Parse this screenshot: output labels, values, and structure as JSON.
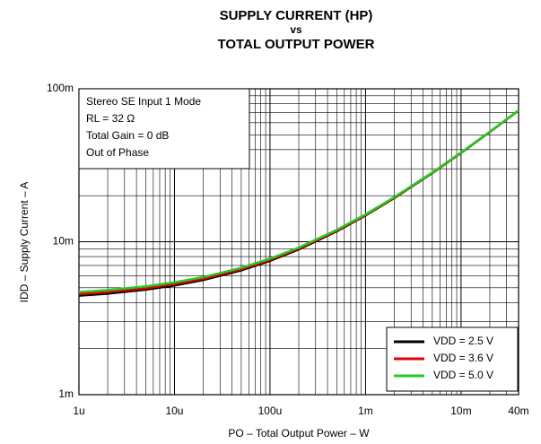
{
  "chart_data": {
    "type": "line",
    "title": [
      "SUPPLY CURRENT (HP)",
      "vs",
      "TOTAL OUTPUT POWER"
    ],
    "x_label": "PO – Total Output Power – W",
    "y_label": "IDD – Supply Current – A",
    "annotation": [
      "Stereo SE Input 1 Mode",
      "RL = 32 Ω",
      "Total Gain = 0 dB",
      "Out of Phase"
    ],
    "log_x": true,
    "log_y": true,
    "grid": true,
    "legend": "lower right",
    "x": [
      1e-06,
      2e-06,
      5e-06,
      1e-05,
      2e-05,
      5e-05,
      0.0001,
      0.0002,
      0.0005,
      0.001,
      0.002,
      0.005,
      0.01,
      0.02,
      0.04
    ],
    "series": [
      {
        "name": "VDD = 2.5 V",
        "color": "#000000",
        "values": [
          0.00444,
          0.00458,
          0.00486,
          0.00518,
          0.00562,
          0.0065,
          0.0075,
          0.00891,
          0.0117,
          0.01485,
          0.0193,
          0.0281,
          0.0381,
          0.0522,
          0.0721
        ]
      },
      {
        "name": "VDD = 3.6 V",
        "color": "#e00000",
        "values": [
          0.00454,
          0.00468,
          0.00496,
          0.00528,
          0.00572,
          0.0066,
          0.0076,
          0.00901,
          0.0118,
          0.01495,
          0.0194,
          0.0282,
          0.0382,
          0.0523,
          0.0722
        ]
      },
      {
        "name": "VDD = 5.0 V",
        "color": "#22cc22",
        "values": [
          0.00469,
          0.00483,
          0.00511,
          0.00543,
          0.00587,
          0.00675,
          0.00775,
          0.00916,
          0.01195,
          0.0151,
          0.01955,
          0.02835,
          0.03835,
          0.05245,
          0.07235
        ]
      }
    ],
    "xlim": [
      1e-06,
      0.04
    ],
    "ylim": [
      0.001,
      0.1
    ],
    "xticks": [
      {
        "value": 1e-06,
        "label": "1u"
      },
      {
        "value": 1e-05,
        "label": "10u"
      },
      {
        "value": 0.0001,
        "label": "100u"
      },
      {
        "value": 0.001,
        "label": "1m"
      },
      {
        "value": 0.01,
        "label": "10m"
      },
      {
        "value": 0.04,
        "label": "40m"
      }
    ],
    "yticks": [
      {
        "value": 0.001,
        "label": "1m"
      },
      {
        "value": 0.01,
        "label": "10m"
      },
      {
        "value": 0.1,
        "label": "100m"
      }
    ]
  }
}
